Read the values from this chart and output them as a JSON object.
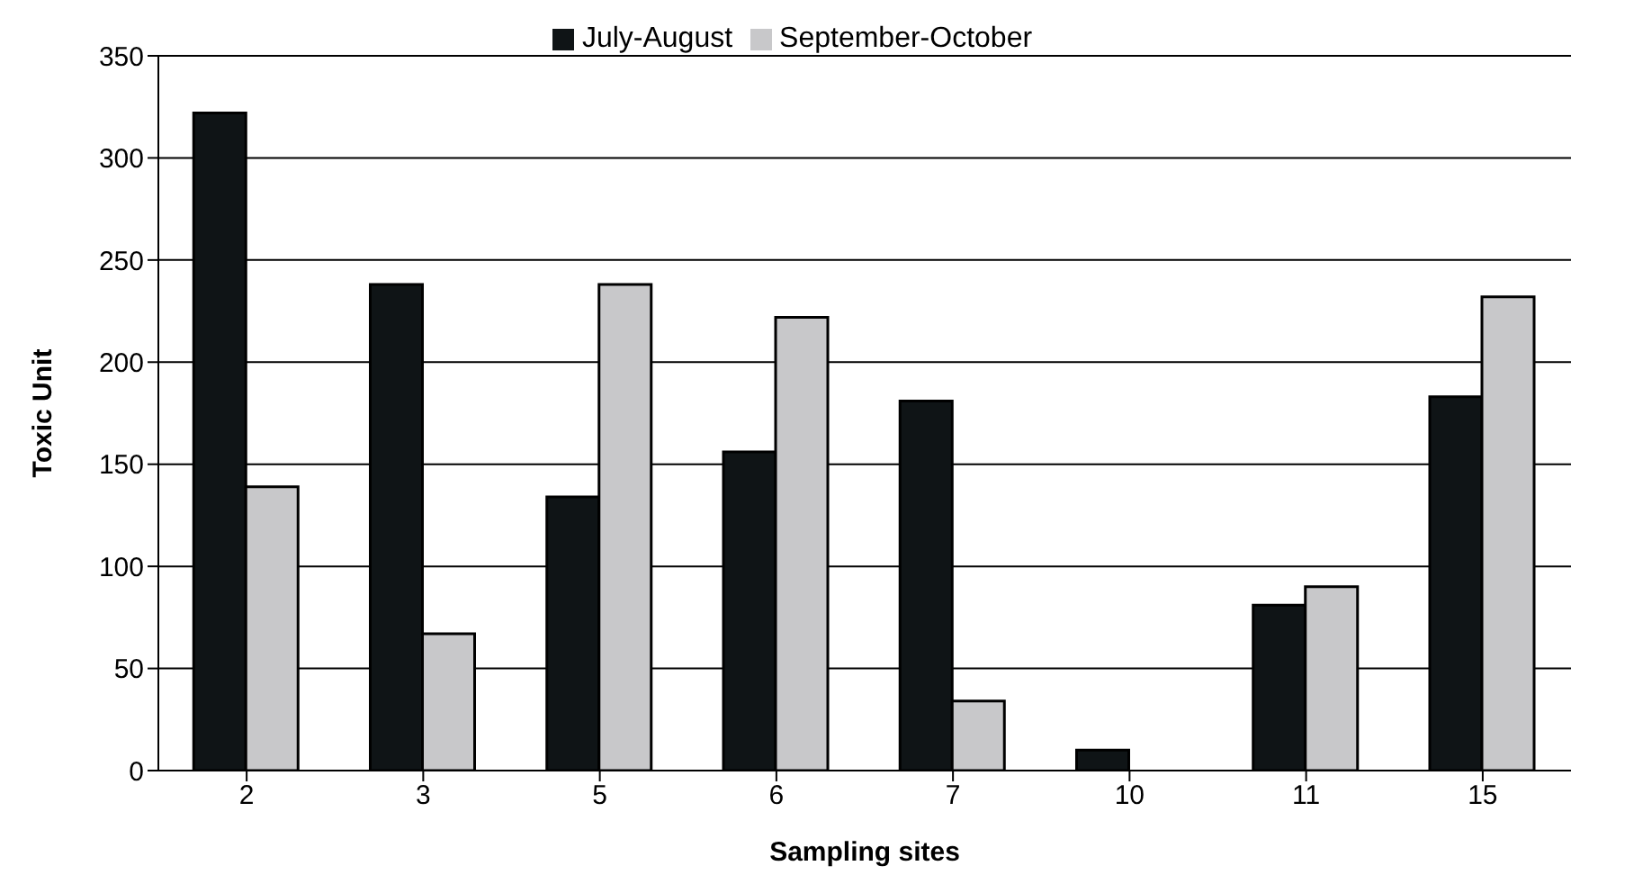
{
  "chart_data": {
    "type": "bar",
    "xlabel": "Sampling sites",
    "ylabel": "Toxic Unit",
    "categories": [
      "2",
      "3",
      "5",
      "6",
      "7",
      "10",
      "11",
      "15"
    ],
    "series": [
      {
        "name": "July-August",
        "color": "#0f1416",
        "values": [
          322,
          238,
          134,
          156,
          181,
          10,
          81,
          183
        ]
      },
      {
        "name": "September-October",
        "color": "#c8c8ca",
        "values": [
          139,
          67,
          238,
          222,
          34,
          0,
          90,
          232
        ]
      }
    ],
    "ylim": [
      0,
      350
    ],
    "yticks": [
      0,
      50,
      100,
      150,
      200,
      250,
      300,
      350
    ],
    "grid": "y",
    "legend": "top"
  }
}
